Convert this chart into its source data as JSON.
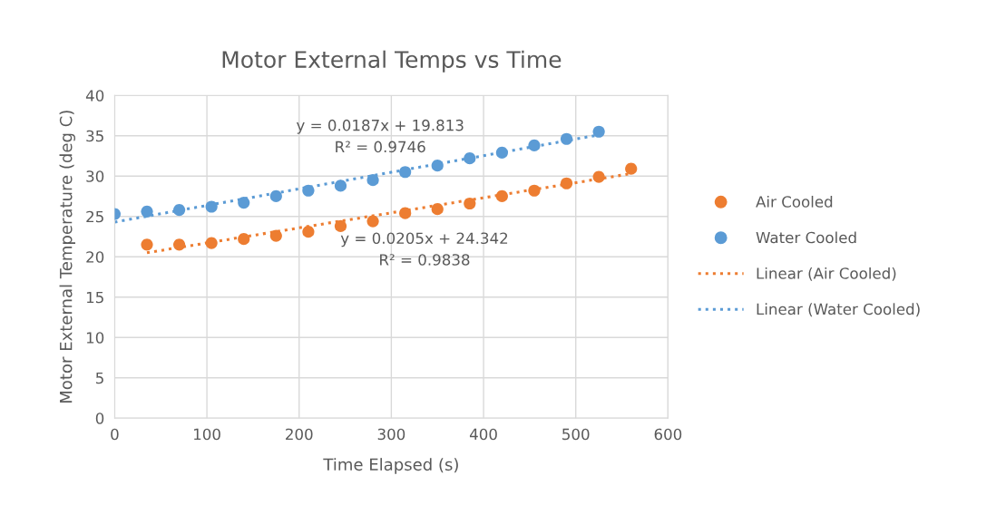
{
  "chart_data": {
    "type": "scatter",
    "title": "Motor External Temps vs Time",
    "xlabel": "Time Elapsed (s)",
    "ylabel": "Motor External Temperature (deg C)",
    "xlim": [
      0,
      600
    ],
    "xticks": [
      0,
      100,
      200,
      300,
      400,
      500,
      600
    ],
    "ylim": [
      0,
      40
    ],
    "yticks": [
      0,
      5,
      10,
      15,
      20,
      25,
      30,
      35,
      40
    ],
    "grid": true,
    "legend": "right",
    "annotations": [
      "y = 0.0187x + 19.813\nR² = 0.9746",
      "y = 0.0205x + 24.342\nR² = 0.9838"
    ],
    "series": [
      {
        "name": "Air Cooled",
        "marker": "circle",
        "color": "#ed7d31",
        "x": [
          35,
          70,
          105,
          140,
          175,
          210,
          245,
          280,
          315,
          350,
          385,
          420,
          455,
          490,
          525,
          560
        ],
        "values": [
          21.5,
          21.5,
          21.7,
          22.2,
          22.6,
          23.1,
          23.8,
          24.4,
          25.4,
          25.9,
          26.6,
          27.5,
          28.2,
          29.1,
          29.9,
          30.9
        ]
      },
      {
        "name": "Water Cooled",
        "marker": "circle",
        "color": "#5b9bd5",
        "x": [
          0,
          35,
          70,
          105,
          140,
          175,
          210,
          245,
          280,
          315,
          350,
          385,
          420,
          455,
          490,
          525
        ],
        "values": [
          25.3,
          25.6,
          25.8,
          26.2,
          26.7,
          27.5,
          28.2,
          28.8,
          29.5,
          30.5,
          31.3,
          32.2,
          32.9,
          33.8,
          34.6,
          35.5
        ]
      },
      {
        "name": "Linear (Air Cooled)",
        "type": "line",
        "marker": "none",
        "line_style": "dotted",
        "color": "#ed7d31",
        "x": [
          35,
          560
        ],
        "values": [
          20.5,
          30.3
        ]
      },
      {
        "name": "Linear (Water Cooled)",
        "type": "line",
        "marker": "none",
        "line_style": "dotted",
        "color": "#5b9bd5",
        "x": [
          0,
          525
        ],
        "values": [
          24.3,
          35.1
        ]
      }
    ]
  }
}
